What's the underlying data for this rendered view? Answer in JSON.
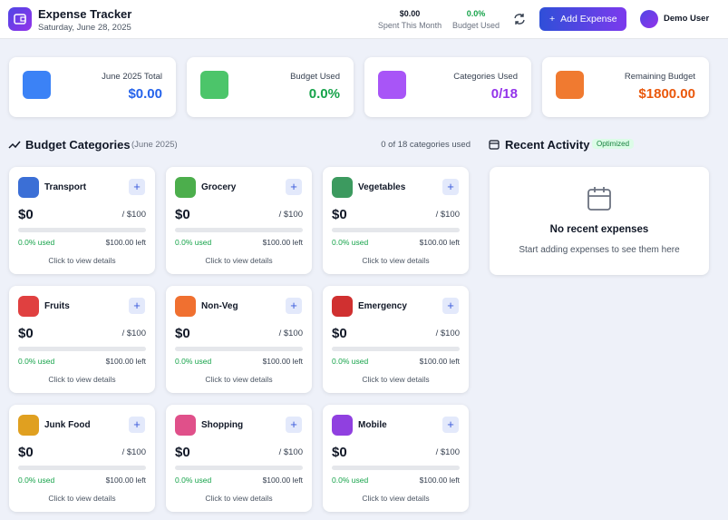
{
  "header": {
    "title": "Expense Tracker",
    "date": "Saturday, June 28, 2025",
    "spent_value": "$0.00",
    "spent_label": "Spent This Month",
    "budget_value": "0.0%",
    "budget_label": "Budget Used",
    "add_button": "Add Expense",
    "user": "Demo User"
  },
  "stats": [
    {
      "label": "June 2025 Total",
      "value": "$0.00"
    },
    {
      "label": "Budget Used",
      "value": "0.0%"
    },
    {
      "label": "Categories Used",
      "value": "0/18"
    },
    {
      "label": "Remaining Budget",
      "value": "$1800.00"
    }
  ],
  "categories_section": {
    "title": "Budget Categories",
    "period": "(June 2025)",
    "summary": "0 of 18 categories used",
    "cards": [
      {
        "name": "Transport",
        "amount": "$0",
        "budget": "/ $100",
        "used": "0.0% used",
        "left": "$100.00 left",
        "hint": "Click to view details"
      },
      {
        "name": "Grocery",
        "amount": "$0",
        "budget": "/ $100",
        "used": "0.0% used",
        "left": "$100.00 left",
        "hint": "Click to view details"
      },
      {
        "name": "Vegetables",
        "amount": "$0",
        "budget": "/ $100",
        "used": "0.0% used",
        "left": "$100.00 left",
        "hint": "Click to view details"
      },
      {
        "name": "Fruits",
        "amount": "$0",
        "budget": "/ $100",
        "used": "0.0% used",
        "left": "$100.00 left",
        "hint": "Click to view details"
      },
      {
        "name": "Non-Veg",
        "amount": "$0",
        "budget": "/ $100",
        "used": "0.0% used",
        "left": "$100.00 left",
        "hint": "Click to view details"
      },
      {
        "name": "Emergency",
        "amount": "$0",
        "budget": "/ $100",
        "used": "0.0% used",
        "left": "$100.00 left",
        "hint": "Click to view details"
      },
      {
        "name": "Junk Food",
        "amount": "$0",
        "budget": "/ $100",
        "used": "0.0% used",
        "left": "$100.00 left",
        "hint": "Click to view details"
      },
      {
        "name": "Shopping",
        "amount": "$0",
        "budget": "/ $100",
        "used": "0.0% used",
        "left": "$100.00 left",
        "hint": "Click to view details"
      },
      {
        "name": "Mobile",
        "amount": "$0",
        "budget": "/ $100",
        "used": "0.0% used",
        "left": "$100.00 left",
        "hint": "Click to view details"
      }
    ]
  },
  "recent_activity": {
    "title": "Recent Activity",
    "badge": "Optimized",
    "empty_title": "No recent expenses",
    "empty_text": "Start adding expenses to see them here"
  }
}
